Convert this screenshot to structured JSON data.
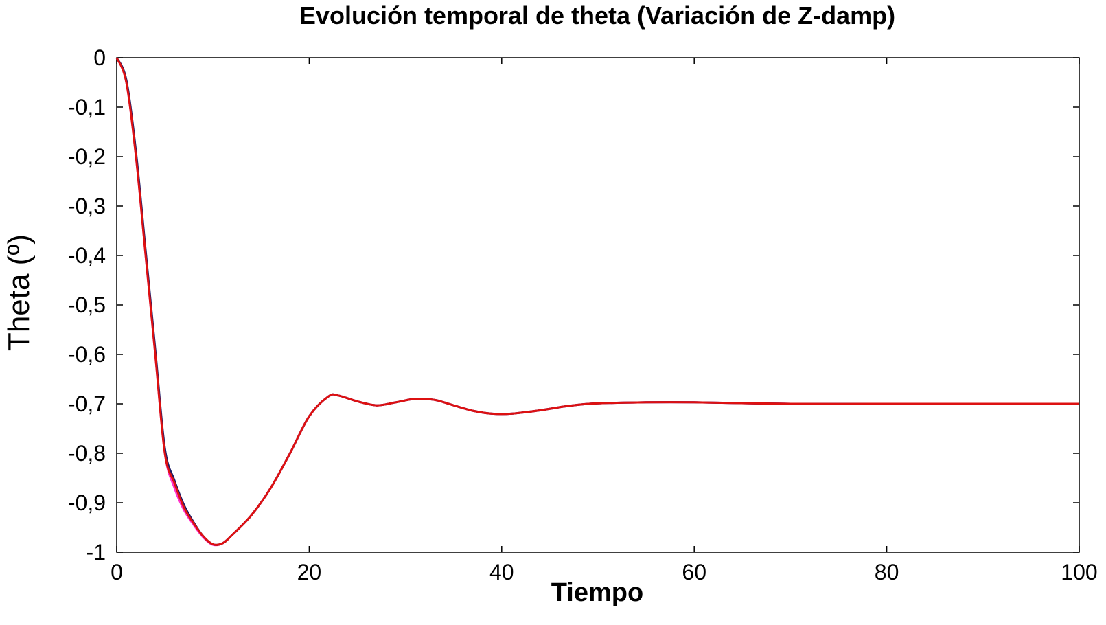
{
  "chart_data": {
    "type": "line",
    "title": "Evolución temporal de theta (Variación de Z-damp)",
    "xlabel": "Tiempo",
    "ylabel": "Theta (º)",
    "xlim": [
      0,
      100
    ],
    "ylim": [
      -1,
      0
    ],
    "xticks": [
      0,
      20,
      40,
      60,
      80,
      100
    ],
    "xtick_labels": [
      "0",
      "20",
      "40",
      "60",
      "80",
      "100"
    ],
    "yticks": [
      0,
      -0.1,
      -0.2,
      -0.3,
      -0.4,
      -0.5,
      -0.6,
      -0.7,
      -0.8,
      -0.9,
      -1
    ],
    "ytick_labels": [
      "0",
      "-0,1",
      "-0,2",
      "-0,3",
      "-0,4",
      "-0,5",
      "-0,6",
      "-0,7",
      "-0,8",
      "-0,9",
      "-1"
    ],
    "grid": false,
    "series": [
      {
        "color": "#ff33cc",
        "x": [
          0,
          1,
          2,
          3,
          4,
          5,
          6,
          7,
          8,
          9,
          10,
          11,
          12,
          14,
          16,
          18,
          20,
          22,
          23,
          25,
          27,
          29,
          31,
          33,
          35,
          37,
          39,
          41,
          44,
          47,
          50,
          55,
          60,
          70,
          80,
          90,
          100
        ],
        "y": [
          0,
          -0.05,
          -0.2,
          -0.4,
          -0.6,
          -0.8,
          -0.87,
          -0.915,
          -0.945,
          -0.97,
          -0.985,
          -0.982,
          -0.965,
          -0.925,
          -0.87,
          -0.8,
          -0.725,
          -0.685,
          -0.683,
          -0.695,
          -0.703,
          -0.697,
          -0.69,
          -0.692,
          -0.703,
          -0.714,
          -0.72,
          -0.72,
          -0.713,
          -0.704,
          -0.699,
          -0.697,
          -0.697,
          -0.7,
          -0.7,
          -0.7,
          -0.7
        ]
      },
      {
        "color": "#1a1a66",
        "x": [
          0,
          1,
          2,
          3,
          4,
          5,
          6,
          7,
          8,
          9,
          10,
          11,
          12,
          14,
          16,
          18,
          20,
          22,
          23,
          25,
          27,
          29,
          31,
          33,
          35,
          37,
          39,
          41,
          44,
          47,
          50,
          55,
          60,
          70,
          80,
          90,
          100
        ],
        "y": [
          0,
          -0.045,
          -0.19,
          -0.39,
          -0.59,
          -0.79,
          -0.855,
          -0.905,
          -0.94,
          -0.968,
          -0.984,
          -0.982,
          -0.965,
          -0.925,
          -0.87,
          -0.8,
          -0.725,
          -0.685,
          -0.683,
          -0.695,
          -0.703,
          -0.697,
          -0.69,
          -0.692,
          -0.703,
          -0.714,
          -0.72,
          -0.72,
          -0.713,
          -0.704,
          -0.699,
          -0.697,
          -0.697,
          -0.7,
          -0.7,
          -0.7,
          -0.7
        ]
      },
      {
        "color": "#dd1111",
        "x": [
          0,
          1,
          2,
          3,
          4,
          5,
          6,
          7,
          8,
          9,
          10,
          11,
          12,
          14,
          16,
          18,
          20,
          22,
          23,
          25,
          27,
          29,
          31,
          33,
          35,
          37,
          39,
          41,
          44,
          47,
          50,
          55,
          60,
          70,
          80,
          90,
          100
        ],
        "y": [
          0,
          -0.05,
          -0.2,
          -0.4,
          -0.6,
          -0.8,
          -0.86,
          -0.91,
          -0.942,
          -0.968,
          -0.984,
          -0.982,
          -0.965,
          -0.925,
          -0.87,
          -0.8,
          -0.725,
          -0.685,
          -0.683,
          -0.695,
          -0.703,
          -0.697,
          -0.69,
          -0.692,
          -0.703,
          -0.714,
          -0.72,
          -0.72,
          -0.713,
          -0.704,
          -0.699,
          -0.697,
          -0.697,
          -0.7,
          -0.7,
          -0.7,
          -0.7
        ]
      }
    ]
  }
}
